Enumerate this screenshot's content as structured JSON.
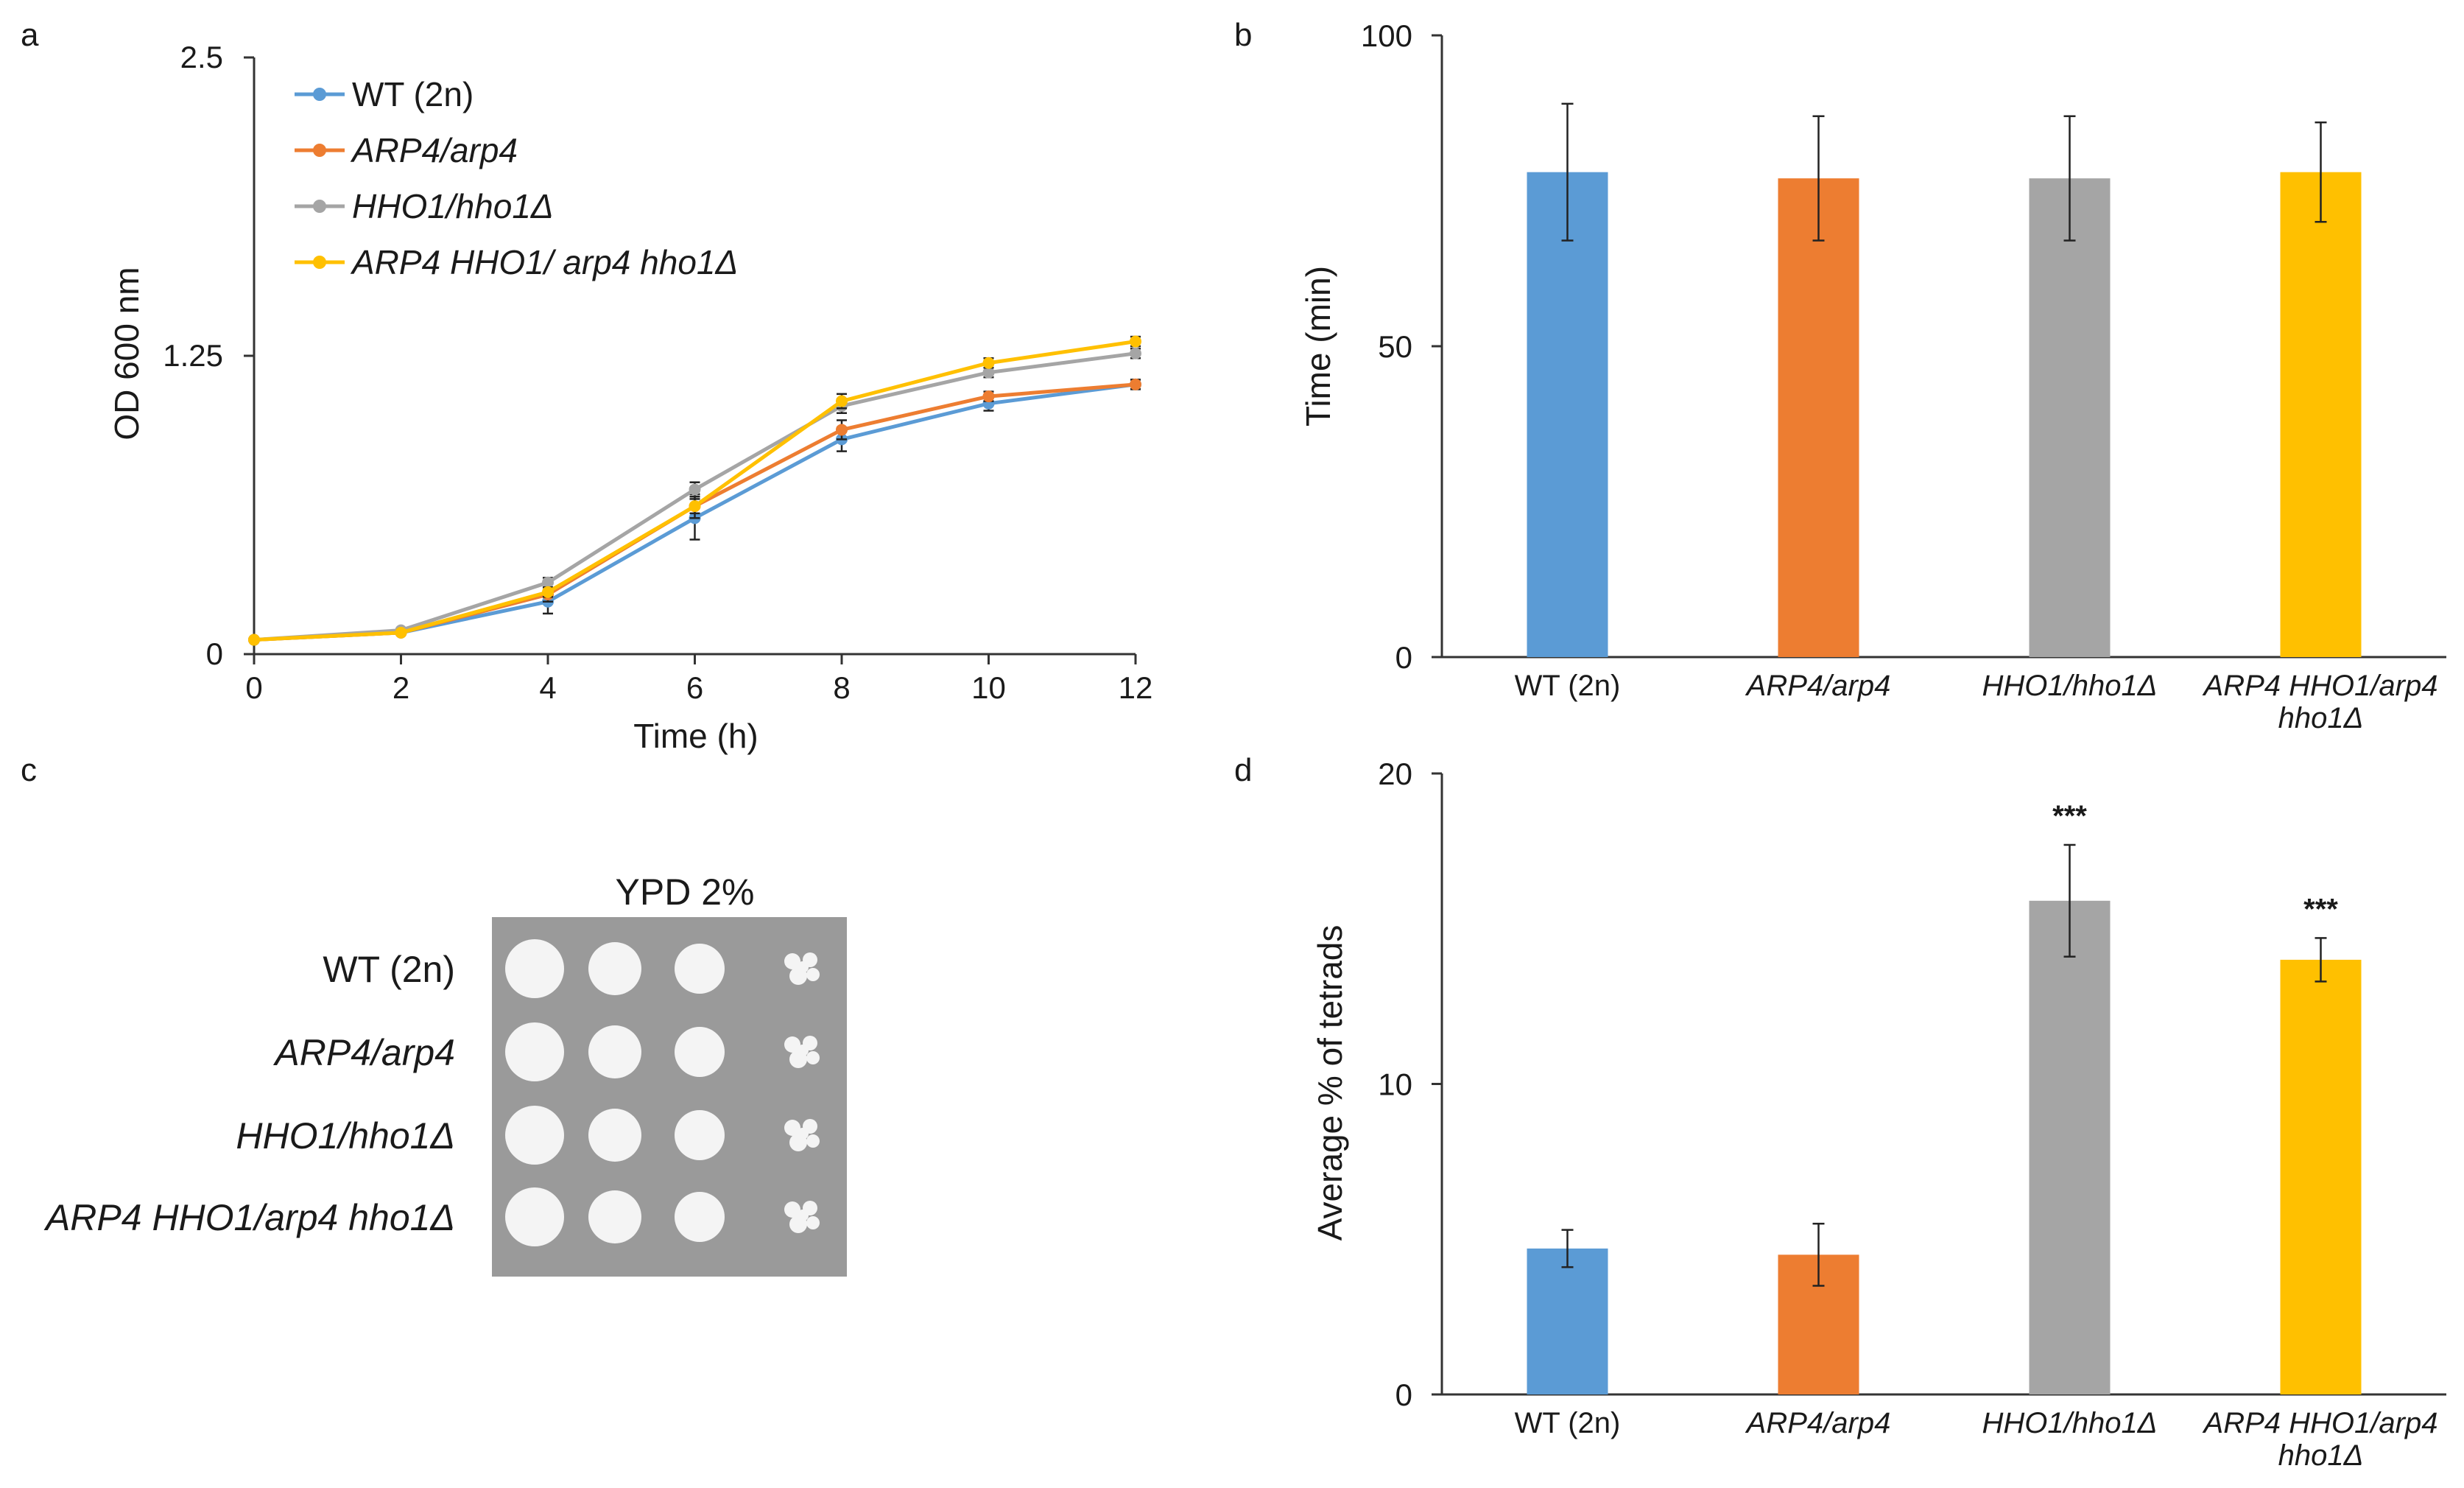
{
  "panels": {
    "a": "a",
    "b": "b",
    "c": "c",
    "d": "d"
  },
  "colors": {
    "wt": "#5b9bd5",
    "arp4": "#ed7d31",
    "hho1": "#a5a5a5",
    "double": "#ffc000",
    "axis": "#333333",
    "plate": "#9a9a9a",
    "colony": "#f4f4f4"
  },
  "chart_data": [
    {
      "panel": "a",
      "type": "line",
      "xlabel": "Time (h)",
      "ylabel": "OD 600 nm",
      "x": [
        0,
        2,
        4,
        6,
        8,
        10,
        12
      ],
      "xticks": [
        "0",
        "2",
        "4",
        "6",
        "8",
        "10",
        "12"
      ],
      "yticks": [
        0,
        1.25,
        2.5
      ],
      "ytick_labels": [
        "0",
        "1.25",
        "2.5"
      ],
      "ylim": [
        0,
        2.5
      ],
      "legend_position": "top-left",
      "series": [
        {
          "key": "wt",
          "name": "WT (2n)",
          "italic": false,
          "values": [
            0.06,
            0.09,
            0.22,
            0.57,
            0.9,
            1.05,
            1.13
          ],
          "errors": [
            0.01,
            0.01,
            0.05,
            0.09,
            0.05,
            0.03,
            0.02
          ]
        },
        {
          "key": "arp4",
          "name": "ARP4/arp4",
          "italic": true,
          "values": [
            0.06,
            0.09,
            0.25,
            0.62,
            0.94,
            1.08,
            1.13
          ],
          "errors": [
            0.01,
            0.01,
            0.03,
            0.05,
            0.04,
            0.02,
            0.02
          ]
        },
        {
          "key": "hho1",
          "name": "HHO1/hho1Δ",
          "italic": true,
          "values": [
            0.06,
            0.1,
            0.3,
            0.69,
            1.04,
            1.18,
            1.26
          ],
          "errors": [
            0.01,
            0.01,
            0.02,
            0.03,
            0.03,
            0.02,
            0.02
          ]
        },
        {
          "key": "double",
          "name": "ARP4 HHO1/ arp4 hho1Δ",
          "italic": true,
          "values": [
            0.06,
            0.09,
            0.26,
            0.62,
            1.06,
            1.22,
            1.31
          ],
          "errors": [
            0.01,
            0.01,
            0.02,
            0.03,
            0.03,
            0.02,
            0.02
          ]
        }
      ]
    },
    {
      "panel": "b",
      "type": "bar",
      "ylabel": "Time (min)",
      "yticks": [
        0,
        50,
        100
      ],
      "ytick_labels": [
        "0",
        "50",
        "100"
      ],
      "ylim": [
        0,
        100
      ],
      "categories": [
        "WT (2n)",
        "ARP4/arp4",
        "HHO1/hho1Δ",
        "ARP4 HHO1/arp4 hho1Δ"
      ],
      "category_lines": [
        [
          "WT (2n)"
        ],
        [
          "ARP4/arp4"
        ],
        [
          "HHO1/hho1Δ"
        ],
        [
          "ARP4 HHO1/arp4",
          "hho1Δ"
        ]
      ],
      "values": [
        78,
        77,
        77,
        78
      ],
      "errors": [
        11,
        10,
        10,
        8
      ],
      "significance": [
        "",
        "",
        "",
        ""
      ]
    },
    {
      "panel": "d",
      "type": "bar",
      "ylabel": "Average % of tetrads",
      "yticks": [
        0,
        10,
        20
      ],
      "ytick_labels": [
        "0",
        "10",
        "20"
      ],
      "ylim": [
        0,
        20
      ],
      "categories": [
        "WT (2n)",
        "ARP4/arp4",
        "HHO1/hho1Δ",
        "ARP4 HHO1/arp4 hho1Δ"
      ],
      "category_lines": [
        [
          "WT (2n)"
        ],
        [
          "ARP4/arp4"
        ],
        [
          "HHO1/hho1Δ"
        ],
        [
          "ARP4 HHO1/arp4",
          "hho1Δ"
        ]
      ],
      "values": [
        4.7,
        4.5,
        15.9,
        14.0
      ],
      "errors": [
        0.6,
        1.0,
        1.8,
        0.7
      ],
      "significance": [
        "",
        "",
        "***",
        "***"
      ]
    }
  ],
  "panel_c": {
    "title": "YPD 2%",
    "strains": [
      "WT (2n)",
      "ARP4/arp4",
      "HHO1/hho1Δ",
      "ARP4 HHO1/arp4 hho1Δ"
    ],
    "strain_italic": [
      false,
      true,
      true,
      true
    ],
    "dilutions": 4
  }
}
